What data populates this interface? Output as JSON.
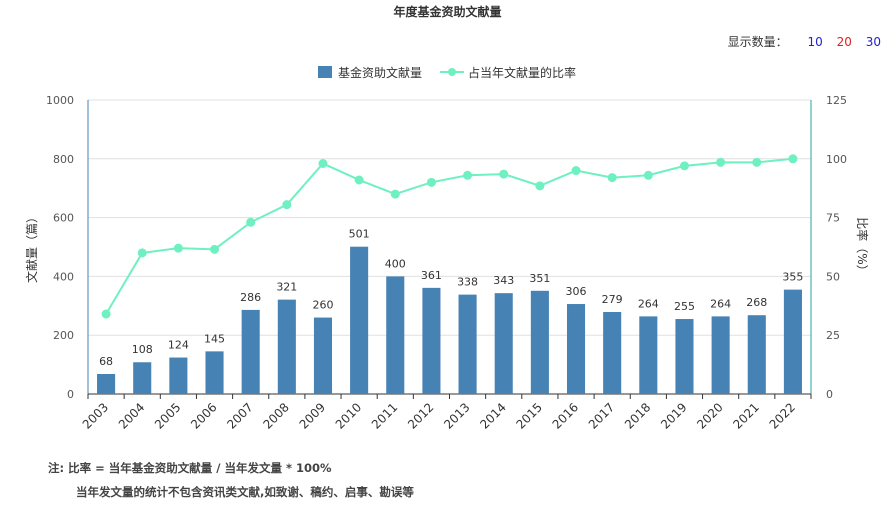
{
  "chart_data": {
    "type": "bar",
    "title": "年度基金资助文献量",
    "categories": [
      "2003",
      "2004",
      "2005",
      "2006",
      "2007",
      "2008",
      "2009",
      "2010",
      "2011",
      "2012",
      "2013",
      "2014",
      "2015",
      "2016",
      "2017",
      "2018",
      "2019",
      "2020",
      "2021",
      "2022"
    ],
    "series": [
      {
        "name": "基金资助文献量",
        "type": "bar",
        "axis": "left",
        "color": "#4682b4",
        "values": [
          68,
          108,
          124,
          145,
          286,
          321,
          260,
          501,
          400,
          361,
          338,
          343,
          351,
          306,
          279,
          264,
          255,
          264,
          268,
          355
        ]
      },
      {
        "name": "占当年文献量的比率",
        "type": "line",
        "axis": "right",
        "color": "#6ff0c0",
        "values": [
          34,
          60,
          62,
          61.5,
          73,
          80.5,
          98,
          91,
          85,
          90,
          93,
          93.5,
          88.5,
          95,
          92,
          93,
          97,
          98.5,
          98.5,
          100
        ]
      }
    ],
    "ylabel": "文献量（篇）",
    "y2label": "比率（%）",
    "ylim": [
      0,
      1000
    ],
    "yticks": [
      0,
      200,
      400,
      600,
      800,
      1000
    ],
    "y2lim": [
      0,
      125
    ],
    "y2ticks": [
      0,
      25,
      50,
      75,
      100,
      125
    ],
    "legend_position": "top-center",
    "grid": true
  },
  "display_count": {
    "label": "显示数量：",
    "options": [
      "10",
      "20",
      "30"
    ]
  },
  "notes": [
    "注:  比率 = 当年基金资助文献量 / 当年发文量 * 100%",
    "当年发文量的统计不包含资讯类文献,如致谢、稿约、启事、勘误等"
  ]
}
